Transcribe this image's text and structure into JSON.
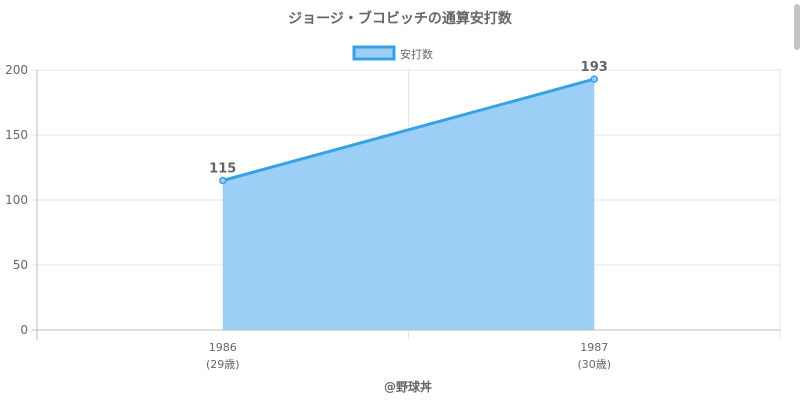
{
  "chart_data": {
    "type": "area",
    "title": "ジョージ・ブコビッチの通算安打数",
    "x": [
      "1986",
      "1987"
    ],
    "x_sublabels": [
      "(29歳)",
      "(30歳)"
    ],
    "series": [
      {
        "name": "安打数",
        "values": [
          115,
          193
        ]
      }
    ],
    "data_labels": [
      "115",
      "193"
    ],
    "ylim": [
      0,
      200
    ],
    "yticks": [
      0,
      50,
      100,
      150,
      200
    ],
    "grid": true,
    "legend": "top-center",
    "footer": "@野球丼",
    "colors": {
      "line": "#3aa0e6",
      "fill": "#9bcff5",
      "grid": "#e6e6e6",
      "axis": "#bbbbbb",
      "text": "#666666"
    }
  }
}
